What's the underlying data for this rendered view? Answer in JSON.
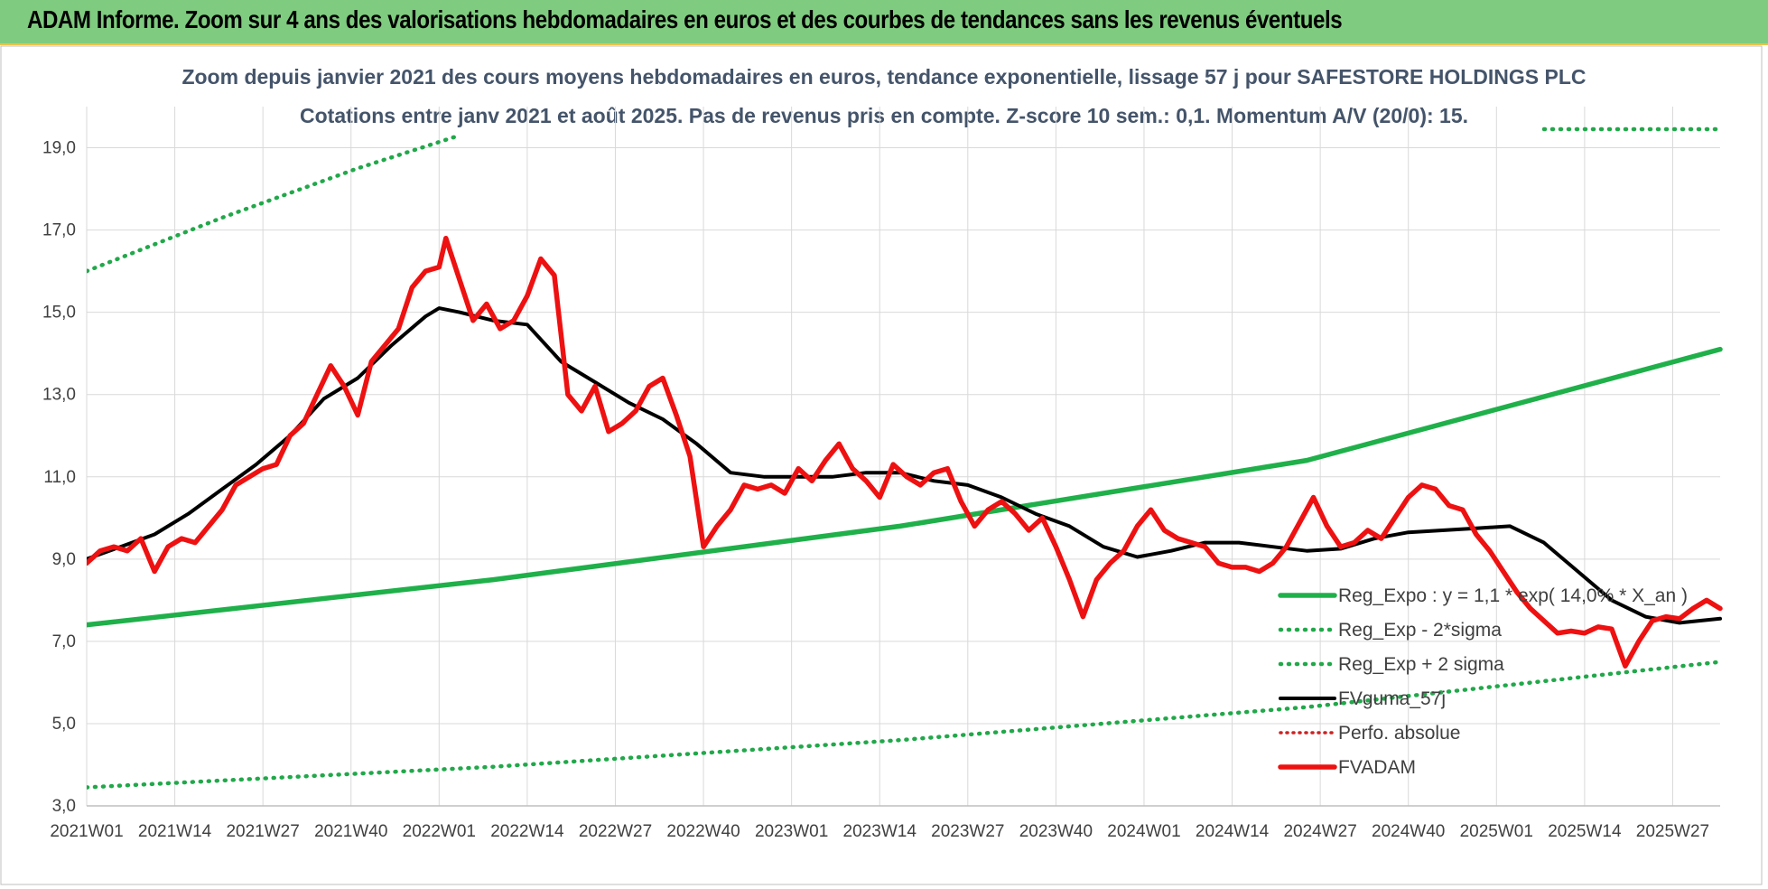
{
  "banner": {
    "title": "ADAM Informe. Zoom sur 4 ans des valorisations hebdomadaires en euros et des courbes de tendances sans les revenus éventuels"
  },
  "colors": {
    "banner_bg": "#7fcb7f",
    "trend_green": "#1fb04a",
    "sigma_green": "#21a84a",
    "smooth_black": "#000000",
    "price_red": "#ee1111",
    "perfo_red": "#cc2222",
    "grid": "#d9d9d9",
    "subtitle": "#44546a"
  },
  "chart_data": {
    "type": "line",
    "title_line1": "Zoom depuis janvier 2021 des cours moyens hebdomadaires en euros, tendance exponentielle, lissage 57 j pour SAFESTORE HOLDINGS PLC",
    "title_line2": "Cotations entre janv 2021 et août 2025.  Pas de revenus pris en compte. Z-score 10 sem.: 0,1. Momentum A/V (20/0): 15.",
    "ylim": [
      3.0,
      20.0
    ],
    "y_ticks": [
      "3,0",
      "5,0",
      "7,0",
      "9,0",
      "11,0",
      "13,0",
      "15,0",
      "17,0",
      "19,0"
    ],
    "y_tick_values": [
      3,
      5,
      7,
      9,
      11,
      13,
      15,
      17,
      19
    ],
    "x_ticks": [
      "2021W01",
      "2021W14",
      "2021W27",
      "2021W40",
      "2022W01",
      "2022W14",
      "2022W27",
      "2022W40",
      "2023W01",
      "2023W14",
      "2023W27",
      "2023W40",
      "2024W01",
      "2024W14",
      "2024W27",
      "2024W40",
      "2025W01",
      "2025W14",
      "2025W27"
    ],
    "x_range_weeks": [
      0,
      241
    ],
    "x_tick_step_weeks": 13,
    "legend": [
      {
        "name": "Reg_Expo : y = 1,1 * exp( 14,0% *  X_an )",
        "style": "solid-green"
      },
      {
        "name": "Reg_Exp - 2*sigma",
        "style": "dotted-green"
      },
      {
        "name": "Reg_Exp + 2 sigma",
        "style": "dotted-green"
      },
      {
        "name": "FVguma_57j",
        "style": "solid-black"
      },
      {
        "name": "Perfo. absolue",
        "style": "dotted-red"
      },
      {
        "name": "FVADAM",
        "style": "solid-red"
      }
    ],
    "series": [
      {
        "name": "Reg_Expo : y = 1,1 * exp( 14,0% *  X_an )",
        "x": [
          0,
          60,
          120,
          180,
          241
        ],
        "y": [
          7.4,
          8.5,
          9.8,
          11.4,
          14.1
        ]
      },
      {
        "name": "Reg_Exp - 2*sigma",
        "x": [
          0,
          60,
          120,
          180,
          241
        ],
        "y": [
          3.45,
          3.95,
          4.6,
          5.4,
          6.5
        ]
      },
      {
        "name": "Reg_Exp + 2 sigma",
        "x": [
          0,
          20,
          40,
          55
        ],
        "y": [
          16.0,
          17.3,
          18.5,
          19.3
        ]
      },
      {
        "name": "FVguma_57j",
        "x": [
          0,
          5,
          10,
          15,
          20,
          25,
          30,
          35,
          40,
          45,
          50,
          52,
          55,
          60,
          65,
          70,
          75,
          80,
          85,
          90,
          95,
          100,
          105,
          110,
          115,
          120,
          125,
          130,
          135,
          140,
          145,
          150,
          155,
          160,
          165,
          170,
          175,
          180,
          185,
          190,
          195,
          200,
          205,
          210,
          215,
          220,
          225,
          230,
          235,
          241
        ],
        "y": [
          9.0,
          9.3,
          9.6,
          10.1,
          10.7,
          11.3,
          12.0,
          12.9,
          13.4,
          14.2,
          14.9,
          15.1,
          15.0,
          14.8,
          14.7,
          13.8,
          13.3,
          12.8,
          12.4,
          11.8,
          11.1,
          11.0,
          11.0,
          11.0,
          11.1,
          11.1,
          10.9,
          10.8,
          10.5,
          10.1,
          9.8,
          9.3,
          9.05,
          9.2,
          9.4,
          9.4,
          9.3,
          9.2,
          9.25,
          9.5,
          9.65,
          9.7,
          9.75,
          9.8,
          9.4,
          8.7,
          8.0,
          7.6,
          7.45,
          7.55
        ]
      },
      {
        "name": "FVADAM",
        "x": [
          0,
          2,
          4,
          6,
          8,
          10,
          12,
          14,
          16,
          18,
          20,
          22,
          24,
          26,
          28,
          30,
          32,
          34,
          36,
          38,
          40,
          42,
          44,
          46,
          48,
          50,
          52,
          53,
          55,
          57,
          59,
          61,
          63,
          65,
          67,
          69,
          71,
          73,
          75,
          77,
          79,
          81,
          83,
          85,
          87,
          89,
          91,
          93,
          95,
          97,
          99,
          101,
          103,
          105,
          107,
          109,
          111,
          113,
          115,
          117,
          119,
          121,
          123,
          125,
          127,
          129,
          131,
          133,
          135,
          137,
          139,
          141,
          143,
          145,
          147,
          149,
          151,
          153,
          155,
          157,
          159,
          161,
          163,
          165,
          167,
          169,
          171,
          173,
          175,
          177,
          179,
          181,
          183,
          185,
          187,
          189,
          191,
          193,
          195,
          197,
          199,
          201,
          203,
          205,
          207,
          209,
          211,
          213,
          215,
          217,
          219,
          221,
          223,
          225,
          227,
          229,
          231,
          233,
          235,
          237,
          239,
          241
        ],
        "y": [
          8.9,
          9.2,
          9.3,
          9.2,
          9.5,
          8.7,
          9.3,
          9.5,
          9.4,
          9.8,
          10.2,
          10.8,
          11.0,
          11.2,
          11.3,
          12.0,
          12.3,
          13.0,
          13.7,
          13.2,
          12.5,
          13.8,
          14.2,
          14.6,
          15.6,
          16.0,
          16.1,
          16.8,
          15.8,
          14.8,
          15.2,
          14.6,
          14.8,
          15.4,
          16.3,
          15.9,
          13.0,
          12.6,
          13.2,
          12.1,
          12.3,
          12.6,
          13.2,
          13.4,
          12.5,
          11.5,
          9.3,
          9.8,
          10.2,
          10.8,
          10.7,
          10.8,
          10.6,
          11.2,
          10.9,
          11.4,
          11.8,
          11.2,
          10.9,
          10.5,
          11.3,
          11.0,
          10.8,
          11.1,
          11.2,
          10.4,
          9.8,
          10.2,
          10.4,
          10.1,
          9.7,
          10.0,
          9.3,
          8.5,
          7.6,
          8.5,
          8.9,
          9.2,
          9.8,
          10.2,
          9.7,
          9.5,
          9.4,
          9.3,
          8.9,
          8.8,
          8.8,
          8.7,
          8.9,
          9.3,
          9.9,
          10.5,
          9.8,
          9.3,
          9.4,
          9.7,
          9.5,
          10.0,
          10.5,
          10.8,
          10.7,
          10.3,
          10.2,
          9.6,
          9.2,
          8.7,
          8.2,
          7.8,
          7.5,
          7.2,
          7.25,
          7.2,
          7.35,
          7.3,
          6.4,
          7.0,
          7.5,
          7.6,
          7.55,
          7.8,
          8.0,
          7.8
        ]
      }
    ]
  }
}
